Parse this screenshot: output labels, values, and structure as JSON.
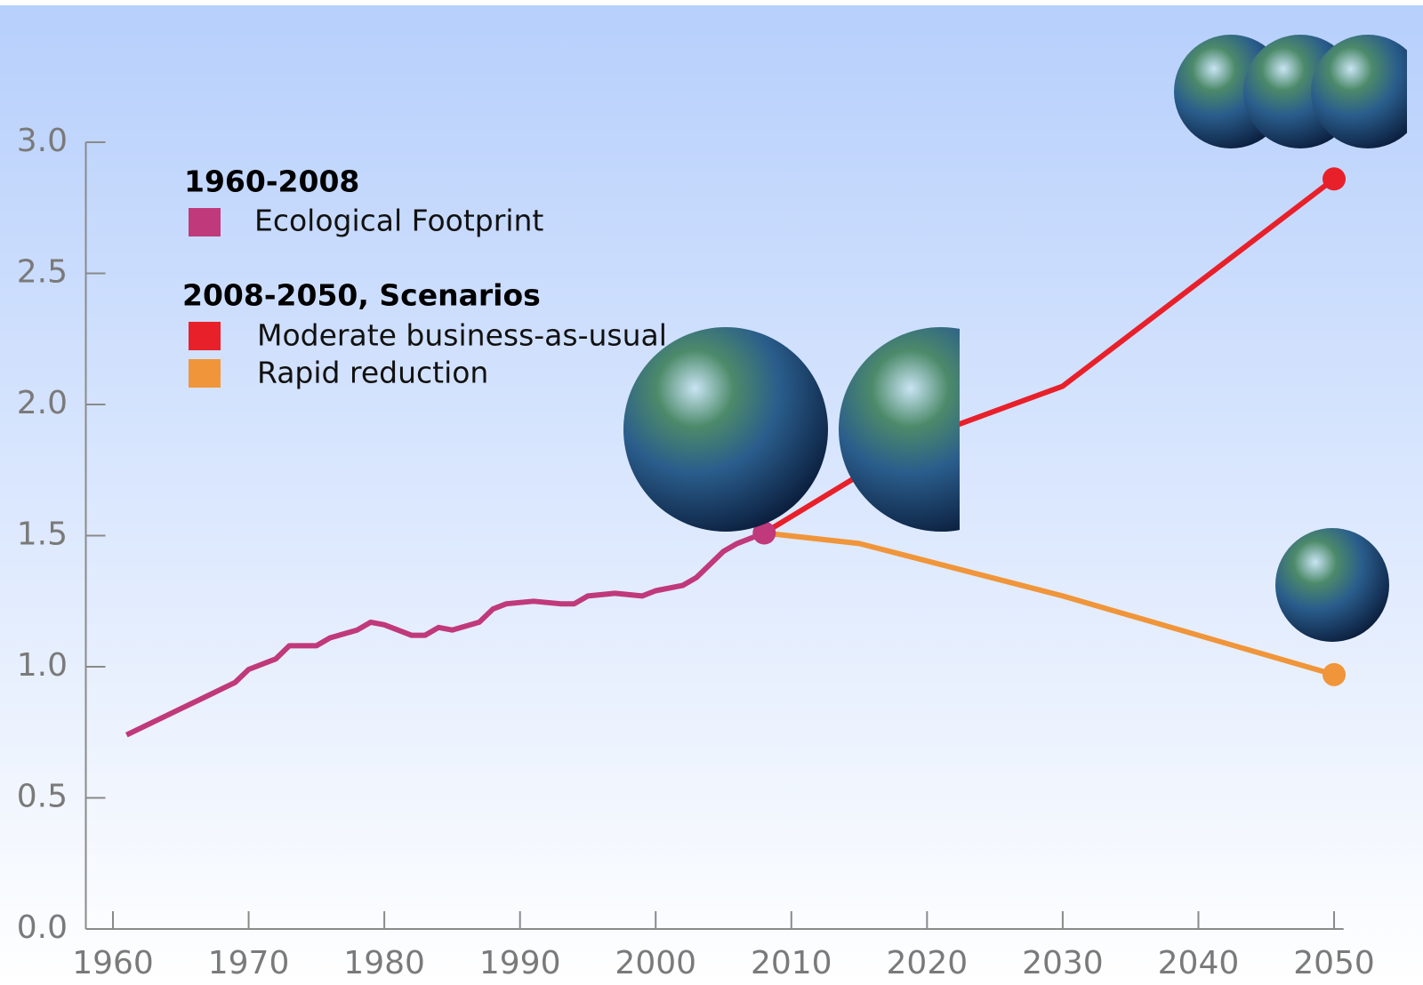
{
  "chart_data": {
    "type": "line",
    "legend_titles": [
      "1960-2008",
      "2008-2050, Scenarios"
    ],
    "series": [
      {
        "name": "Ecological Footprint",
        "color": "#c0397a",
        "x": [
          1961,
          1963,
          1965,
          1967,
          1969,
          1970,
          1972,
          1973,
          1975,
          1976,
          1978,
          1979,
          1980,
          1982,
          1983,
          1984,
          1985,
          1987,
          1988,
          1989,
          1991,
          1993,
          1994,
          1995,
          1997,
          1999,
          2000,
          2002,
          2003,
          2005,
          2006,
          2008
        ],
        "values": [
          0.74,
          0.79,
          0.84,
          0.89,
          0.94,
          0.99,
          1.03,
          1.08,
          1.08,
          1.11,
          1.14,
          1.17,
          1.16,
          1.12,
          1.12,
          1.15,
          1.14,
          1.17,
          1.22,
          1.24,
          1.25,
          1.24,
          1.24,
          1.27,
          1.28,
          1.27,
          1.29,
          1.31,
          1.34,
          1.44,
          1.47,
          1.51
        ]
      },
      {
        "name": "Moderate business-as-usual",
        "color": "#e8202a",
        "x": [
          2008,
          2015,
          2020,
          2030,
          2050
        ],
        "values": [
          1.51,
          1.73,
          1.88,
          2.07,
          2.86
        ]
      },
      {
        "name": "Rapid reduction",
        "color": "#f0953a",
        "x": [
          2008,
          2015,
          2030,
          2050
        ],
        "values": [
          1.51,
          1.47,
          1.27,
          0.97
        ]
      }
    ],
    "xlim": [
      1958,
      2050.7
    ],
    "xticks": [
      1960,
      1970,
      1980,
      1990,
      2000,
      2010,
      2020,
      2030,
      2040,
      2050
    ],
    "ylim": [
      0,
      3.0
    ],
    "yticks": [
      {
        "value": 0,
        "label": "0.0"
      },
      0.5,
      {
        "value": 1,
        "label": "1.0"
      },
      1.5,
      {
        "value": 2,
        "label": "2.0"
      },
      2.5,
      {
        "value": 3,
        "label": "3.0"
      }
    ]
  }
}
